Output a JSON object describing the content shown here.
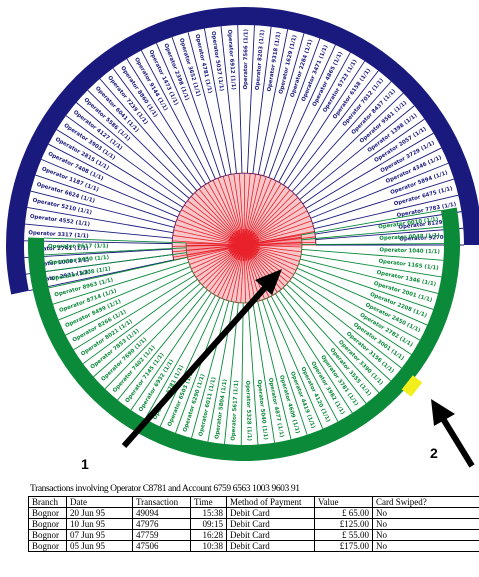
{
  "colors": {
    "navy": "#1a1a7e",
    "green": "#0b8a3a",
    "red": "#e8212a",
    "highlight": "#f2ef1c",
    "arrow": "#000000"
  },
  "callouts": [
    {
      "label": "1"
    },
    {
      "label": "2"
    }
  ],
  "wheel": {
    "top_labels": [
      "Operator 2931 (1/1)",
      "Operator 1006 (1/1)",
      "Operator 2741 (1/1)",
      "Operator 3317 (1/1)",
      "Operator 4552 (1/1)",
      "Operator 5210 (1/1)",
      "Operator 6624 (1/1)",
      "Operator 1187 (1/1)",
      "Operator 7408 (1/1)",
      "Operator 2815 (1/1)",
      "Operator 3903 (1/1)",
      "Operator 4127 (1/1)",
      "Operator 5586 (1/1)",
      "Operator 6041 (1/1)",
      "Operator 7239 (1/1)",
      "Operator 8860 (1/1)",
      "Operator 9144 (1/1)",
      "Operator 1473 (1/1)",
      "Operator 2398 (1/1)",
      "Operator 3652 (1/1)",
      "Operator 4781 (1/1)",
      "Operator 5037 (1/1)",
      "Operator 6912 (1/1)",
      "Operator 7566 (1/1)",
      "Operator 8203 (1/1)",
      "Operator 9318 (1/1)",
      "Operator 1629 (1/1)",
      "Operator 2284 (1/1)",
      "Operator 3471 (1/1)",
      "Operator 4865 (1/1)",
      "Operator 5723 (1/1)",
      "Operator 6158 (1/1)",
      "Operator 7012 (1/1)",
      "Operator 8437 (1/1)",
      "Operator 9561 (1/1)",
      "Operator 1398 (1/1)",
      "Operator 2057 (1/1)",
      "Operator 3729 (1/1)",
      "Operator 4346 (1/1)",
      "Operator 5894 (1/1)",
      "Operator 6475 (1/1)",
      "Operator 7783 (1/1)",
      "Operator 8129 (1/1)",
      "Operator 9270 (1/1)"
    ],
    "bottom_labels": [
      "Operator 0010 (1/1)",
      "Operator 0048 (1/1)",
      "Operator 1040 (1/1)",
      "Operator 1165 (1/1)",
      "Operator 1346 (1/1)",
      "Operator 2001 (1/1)",
      "Operator 2208 (1/1)",
      "Operator 2450 (1/1)",
      "Operator 2782 (1/1)",
      "Operator 3001 (1/1)",
      "Operator 3156 (1/1)",
      "Operator 3390 (1/1)",
      "Operator 3555 (1/1)",
      "Operator 3781 (1/1)",
      "Operator 3982 (1/1)",
      "Operator 4120 (1/1)",
      "Operator 4419 (1/1)",
      "Operator 4609 (1/1)",
      "Operator 4877 (1/1)",
      "Operator 5040 (1/1)",
      "Operator 5328 (1/1)",
      "Operator 5617 (1/1)",
      "Operator 5804 (1/1)",
      "Operator 6011 (1/1)",
      "Operator 6290 (1/1)",
      "Operator 6503 (1/1)",
      "Operator 6781 (1/1)",
      "Operator 6932 (1/1)",
      "Operator 7145 (1/1)",
      "Operator 7402 (1/1)",
      "Operator 7690 (1/1)",
      "Operator 7853 (1/1)",
      "Operator 8021 (1/1)",
      "Operator 8266 (1/1)",
      "Operator 8499 (1/1)",
      "Operator 8714 (1/1)",
      "Operator 8963 (1/1)",
      "Operator 9208 (1/1)",
      "Operator 9450 (1/1)",
      "Operator 9617 (1/1)"
    ]
  },
  "transactions": {
    "caption": "Transactions involving Operator C8781 and Account 6759 6563 1003 9603 91",
    "columns": [
      "Branch",
      "Date",
      "Transaction",
      "Time",
      "Method of Payment",
      "Value",
      "Card Swiped?"
    ],
    "rows": [
      [
        "Bognor",
        "20 Jun 95",
        "49094",
        "15:38",
        "Debit Card",
        "£ 65.00",
        "No"
      ],
      [
        "Bognor",
        "10 Jun 95",
        "47976",
        "09:15",
        "Debit Card",
        "£125.00",
        "No"
      ],
      [
        "Bognor",
        "07 Jun 95",
        "47759",
        "16:28",
        "Debit Card",
        "£ 55.00",
        "No"
      ],
      [
        "Bognor",
        "05 Jun 95",
        "47506",
        "10:38",
        "Debit Card",
        "£175.00",
        "No"
      ]
    ]
  }
}
